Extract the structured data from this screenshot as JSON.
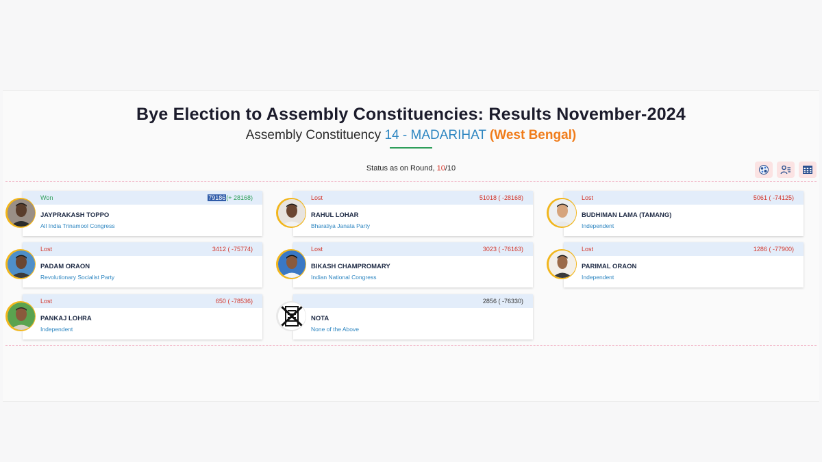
{
  "header": {
    "title": "Bye Election to Assembly Constituencies: Results November-2024",
    "subtitle_prefix": "Assembly Constituency",
    "constituency": "14 - MADARIHAT",
    "state": "(West Bengal)"
  },
  "round_status": {
    "label": "Status as on Round,",
    "current": "10",
    "separator": "/",
    "total": "10"
  },
  "toolbar": {
    "icons": [
      "chart-icon",
      "candidate-list-icon",
      "table-icon"
    ]
  },
  "candidates": [
    {
      "status": "Won",
      "votes": "79186",
      "margin": "(+ 28168)",
      "name": "JAYPRAKASH TOPPO",
      "party": "All India Trinamool Congress"
    },
    {
      "status": "Lost",
      "votes": "51018",
      "margin": "( -28168)",
      "name": "RAHUL LOHAR",
      "party": "Bharatiya Janata Party"
    },
    {
      "status": "Lost",
      "votes": "5061",
      "margin": "( -74125)",
      "name": "BUDHIMAN LAMA (TAMANG)",
      "party": "Independent"
    },
    {
      "status": "Lost",
      "votes": "3412",
      "margin": "( -75774)",
      "name": "PADAM ORAON",
      "party": "Revolutionary Socialist Party"
    },
    {
      "status": "Lost",
      "votes": "3023",
      "margin": "( -76163)",
      "name": "BIKASH CHAMPROMARY",
      "party": "Indian National Congress"
    },
    {
      "status": "Lost",
      "votes": "1286",
      "margin": "( -77900)",
      "name": "PARIMAL ORAON",
      "party": "Independent"
    },
    {
      "status": "Lost",
      "votes": "650",
      "margin": "( -78536)",
      "name": "PANKAJ LOHRA",
      "party": "Independent"
    },
    {
      "status": "",
      "votes": "2856",
      "margin": "( -76330)",
      "name": "NOTA",
      "party": "None of the Above"
    }
  ],
  "colors": {
    "won": "#2e9e5a",
    "lost": "#d3352a",
    "accent_blue": "#2e86c1",
    "state_orange": "#f07c1a",
    "card_header": "#e3edfa",
    "avatar_ring": "#f2b61b"
  }
}
